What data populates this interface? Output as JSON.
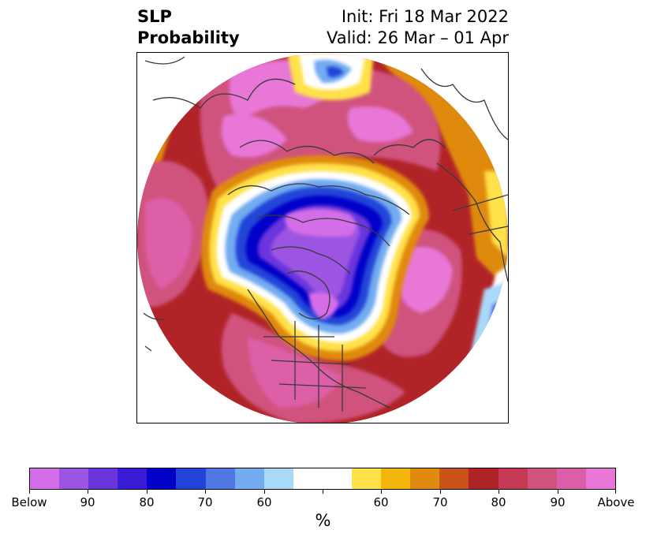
{
  "title": {
    "left_line1": "SLP",
    "left_line2": "Probability",
    "right_line1": "Init: Fri 18 Mar 2022",
    "right_line2": "Valid: 26 Mar – 01 Apr"
  },
  "colorbar": {
    "colors": [
      "#d46ee8",
      "#9c55e2",
      "#6b35dc",
      "#3a1cd6",
      "#0000c8",
      "#2344d8",
      "#4f78e4",
      "#73acf0",
      "#aad8f8",
      "#ffffff",
      "#ffffff",
      "#ffe14a",
      "#f2b70a",
      "#e08a10",
      "#c8541a",
      "#b02428",
      "#c43a54",
      "#d0527e",
      "#dd5ea8",
      "#e877d8"
    ],
    "tick_labels": [
      "Below",
      "90",
      "80",
      "70",
      "60",
      "",
      "60",
      "70",
      "80",
      "90",
      "Above"
    ],
    "label": "%"
  },
  "map": {
    "projection": "north-polar-stereographic",
    "colors": {
      "above_max": "#e877d8",
      "above_90": "#dd5ea8",
      "above_85": "#d0527e",
      "above_80": "#c43a54",
      "above_75": "#b02428",
      "above_70": "#c8541a",
      "above_65": "#e08a10",
      "above_60": "#f2b70a",
      "above_55": "#ffe14a",
      "neutral": "#ffffff",
      "below_55": "#aad8f8",
      "below_60": "#73acf0",
      "below_65": "#4f78e4",
      "below_70": "#2344d8",
      "below_75": "#0000c8",
      "below_80": "#3a1cd6",
      "below_85": "#6b35dc",
      "below_90": "#9c55e2",
      "below_max": "#d46ee8",
      "coastline": "#3a3a3a"
    }
  }
}
